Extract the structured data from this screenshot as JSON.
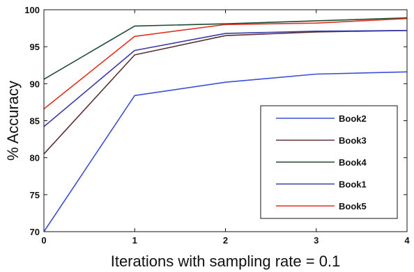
{
  "chart_data": {
    "type": "line",
    "title": "",
    "xlabel": "Iterations with sampling rate = 0.1",
    "ylabel": "% Accuracy",
    "x": [
      0,
      1,
      2,
      3,
      4
    ],
    "xlim": [
      0,
      4
    ],
    "ylim": [
      70,
      100
    ],
    "xticks": [
      "0",
      "1",
      "2",
      "3",
      "4"
    ],
    "yticks": [
      "70",
      "75",
      "80",
      "85",
      "90",
      "95",
      "100"
    ],
    "grid": false,
    "legend_position": "lower-right",
    "series": [
      {
        "name": "Book2",
        "color": "#3b4fd6",
        "values": [
          70.0,
          88.4,
          90.2,
          91.3,
          91.6
        ]
      },
      {
        "name": "Book3",
        "color": "#5a3030",
        "values": [
          80.5,
          93.9,
          96.5,
          97.0,
          97.2
        ]
      },
      {
        "name": "Book4",
        "color": "#1e4a30",
        "values": [
          90.6,
          97.8,
          98.1,
          98.5,
          98.9
        ]
      },
      {
        "name": "Book1",
        "color": "#3a3aa8",
        "values": [
          84.2,
          94.5,
          96.8,
          97.1,
          97.2
        ]
      },
      {
        "name": "Book5",
        "color": "#e0301e",
        "values": [
          86.6,
          96.4,
          98.0,
          98.2,
          98.8
        ]
      }
    ]
  }
}
